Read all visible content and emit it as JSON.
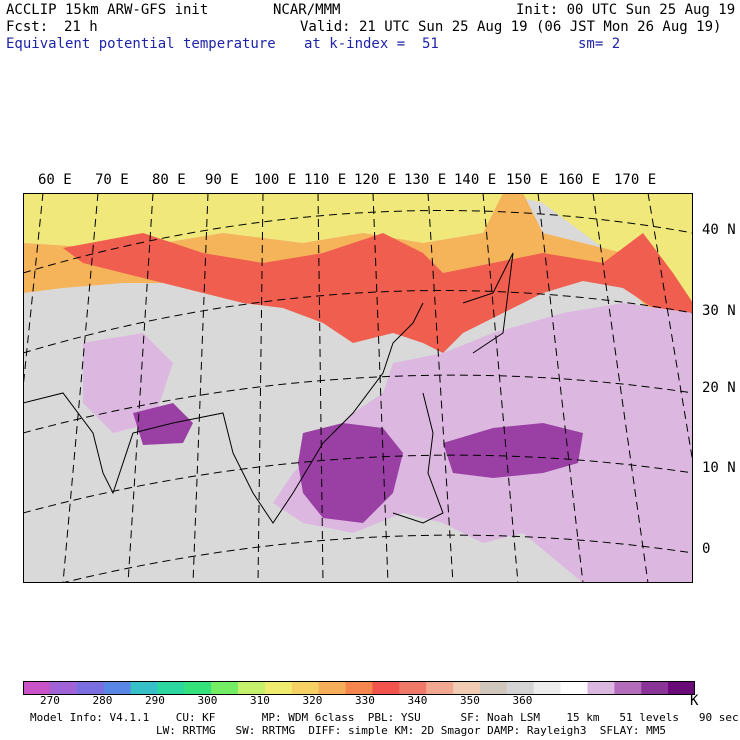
{
  "header": {
    "model": "ACCLIP 15km ARW-GFS init",
    "org": "NCAR/MMM",
    "init": "Init: 00 UTC Sun 25 Aug 19",
    "fcst_label": "Fcst:",
    "fcst_value": "21 h",
    "valid": "Valid: 21 UTC Sun 25 Aug 19 (06 JST Mon 26 Aug 19)",
    "field": "Equivalent potential temperature",
    "level": "at k-index =  51",
    "smooth": "sm= 2"
  },
  "map": {
    "lon_labels": [
      "60 E",
      "70 E",
      "80 E",
      "90 E",
      "100 E",
      "110 E",
      "120 E",
      "130 E",
      "140 E",
      "150 E",
      "160 E",
      "170 E"
    ],
    "lat_labels": [
      "40 N",
      "30 N",
      "20 N",
      "10 N",
      "0"
    ],
    "background_color": "#d9d9d9",
    "regions": [
      {
        "name": "north-band-yellow",
        "color": "#f0e87a"
      },
      {
        "name": "north-band-orange",
        "color": "#f6b45a"
      },
      {
        "name": "north-band-red",
        "color": "#ef5e4e"
      },
      {
        "name": "ocean-lilac",
        "color": "#dcb8e0"
      },
      {
        "name": "core-purple",
        "color": "#9a40a4"
      }
    ]
  },
  "colorbar": {
    "unit": "K",
    "tick_labels": [
      "270",
      "280",
      "290",
      "300",
      "310",
      "320",
      "330",
      "340",
      "350",
      "360"
    ],
    "colors": [
      "#c854c8",
      "#a064d8",
      "#7a6ee0",
      "#5a86e6",
      "#38c0c8",
      "#2cd8a0",
      "#34e07a",
      "#74ec64",
      "#c4f06c",
      "#f0ec70",
      "#f6d264",
      "#f6ae5a",
      "#f4864e",
      "#f0544c",
      "#f07a6a",
      "#f0a890",
      "#f0ccb4",
      "#cfc6be",
      "#d4d4d4",
      "#ececec",
      "#ffffff",
      "#dcb8e0",
      "#b46cbc",
      "#8a3498",
      "#6a0a78"
    ]
  },
  "footer": {
    "line1": "Model Info: V4.1.1    CU: KF       MP: WDM 6class  PBL: YSU      SF: Noah LSM    15 km   51 levels   90 sec",
    "line2": "LW: RRTMG   SW: RRTMG  DIFF: simple KM: 2D Smagor DAMP: Rayleigh3  SFLAY: MM5"
  }
}
